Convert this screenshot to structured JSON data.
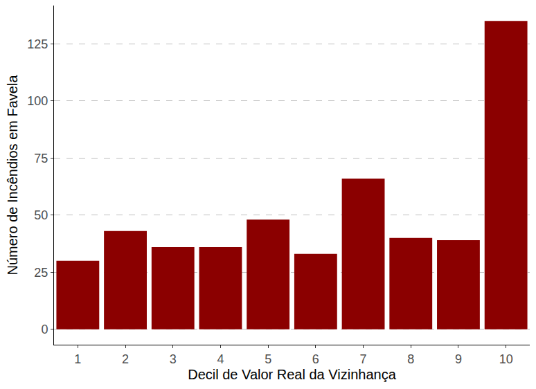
{
  "chart_data": {
    "type": "bar",
    "x_label": "Decil de Valor Real da Vizinhança",
    "y_label": "Número de Incêndios em Favela",
    "categories": [
      "1",
      "2",
      "3",
      "4",
      "5",
      "6",
      "7",
      "8",
      "9",
      "10"
    ],
    "values": [
      30,
      43,
      36,
      36,
      48,
      33,
      66,
      40,
      39,
      135
    ],
    "color": "#8b0000",
    "ylim": [
      -6.75,
      141.75
    ],
    "yticks": [
      0,
      25,
      50,
      75,
      100,
      125
    ],
    "grid": true
  }
}
